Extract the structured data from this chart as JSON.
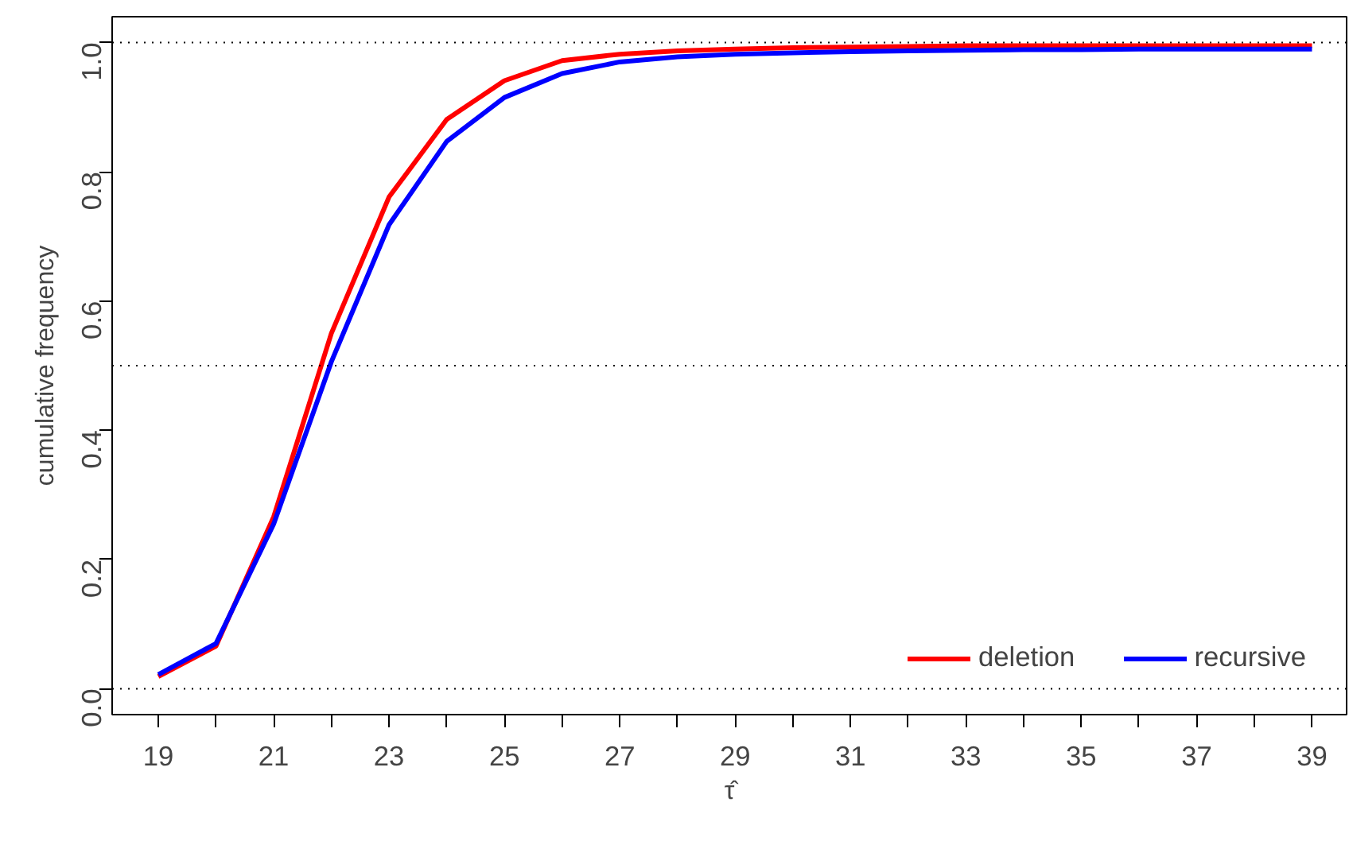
{
  "chart_data": {
    "type": "line",
    "xlabel": "τ̂",
    "ylabel": "cumulative frequency",
    "x": [
      19,
      20,
      21,
      22,
      23,
      24,
      25,
      26,
      27,
      28,
      29,
      30,
      31,
      32,
      33,
      34,
      35,
      36,
      37,
      38,
      39
    ],
    "series": [
      {
        "name": "deletion",
        "color": "#ff0000",
        "values": [
          0.019,
          0.066,
          0.266,
          0.55,
          0.761,
          0.881,
          0.941,
          0.972,
          0.982,
          0.987,
          0.99,
          0.992,
          0.993,
          0.994,
          0.995,
          0.995,
          0.995,
          0.995,
          0.995,
          0.995,
          0.995
        ]
      },
      {
        "name": "recursive",
        "color": "#0000ff",
        "values": [
          0.022,
          0.07,
          0.255,
          0.506,
          0.718,
          0.847,
          0.915,
          0.952,
          0.97,
          0.978,
          0.982,
          0.984,
          0.986,
          0.987,
          0.988,
          0.989,
          0.989,
          0.99,
          0.99,
          0.99,
          0.99
        ]
      }
    ],
    "xlim": [
      18.2,
      39.6
    ],
    "ylim": [
      -0.04,
      1.04
    ],
    "xticks": [
      19,
      {
        "value": 20,
        "label": null
      },
      21,
      {
        "value": 22,
        "label": null
      },
      23,
      {
        "value": 24,
        "label": null
      },
      25,
      {
        "value": 26,
        "label": null
      },
      27,
      {
        "value": 28,
        "label": null
      },
      29,
      {
        "value": 30,
        "label": null
      },
      31,
      {
        "value": 32,
        "label": null
      },
      33,
      {
        "value": 34,
        "label": null
      },
      35,
      {
        "value": 36,
        "label": null
      },
      37,
      {
        "value": 38,
        "label": null
      },
      39
    ],
    "yticks": [
      {
        "value": 0,
        "label": "0.0"
      },
      0.2,
      0.4,
      0.6,
      0.8,
      {
        "value": 1,
        "label": "1.0"
      }
    ],
    "ref_lines": [
      {
        "axis": "y",
        "value": 0,
        "color": "#000000",
        "line_style": "dotted"
      },
      {
        "axis": "y",
        "value": 0.5,
        "color": "#000000",
        "line_style": "dotted"
      },
      {
        "axis": "y",
        "value": 1,
        "color": "#000000",
        "line_style": "dotted"
      }
    ],
    "grid": false,
    "legend": "bottom right",
    "marker": "none",
    "line_style": "solid"
  }
}
